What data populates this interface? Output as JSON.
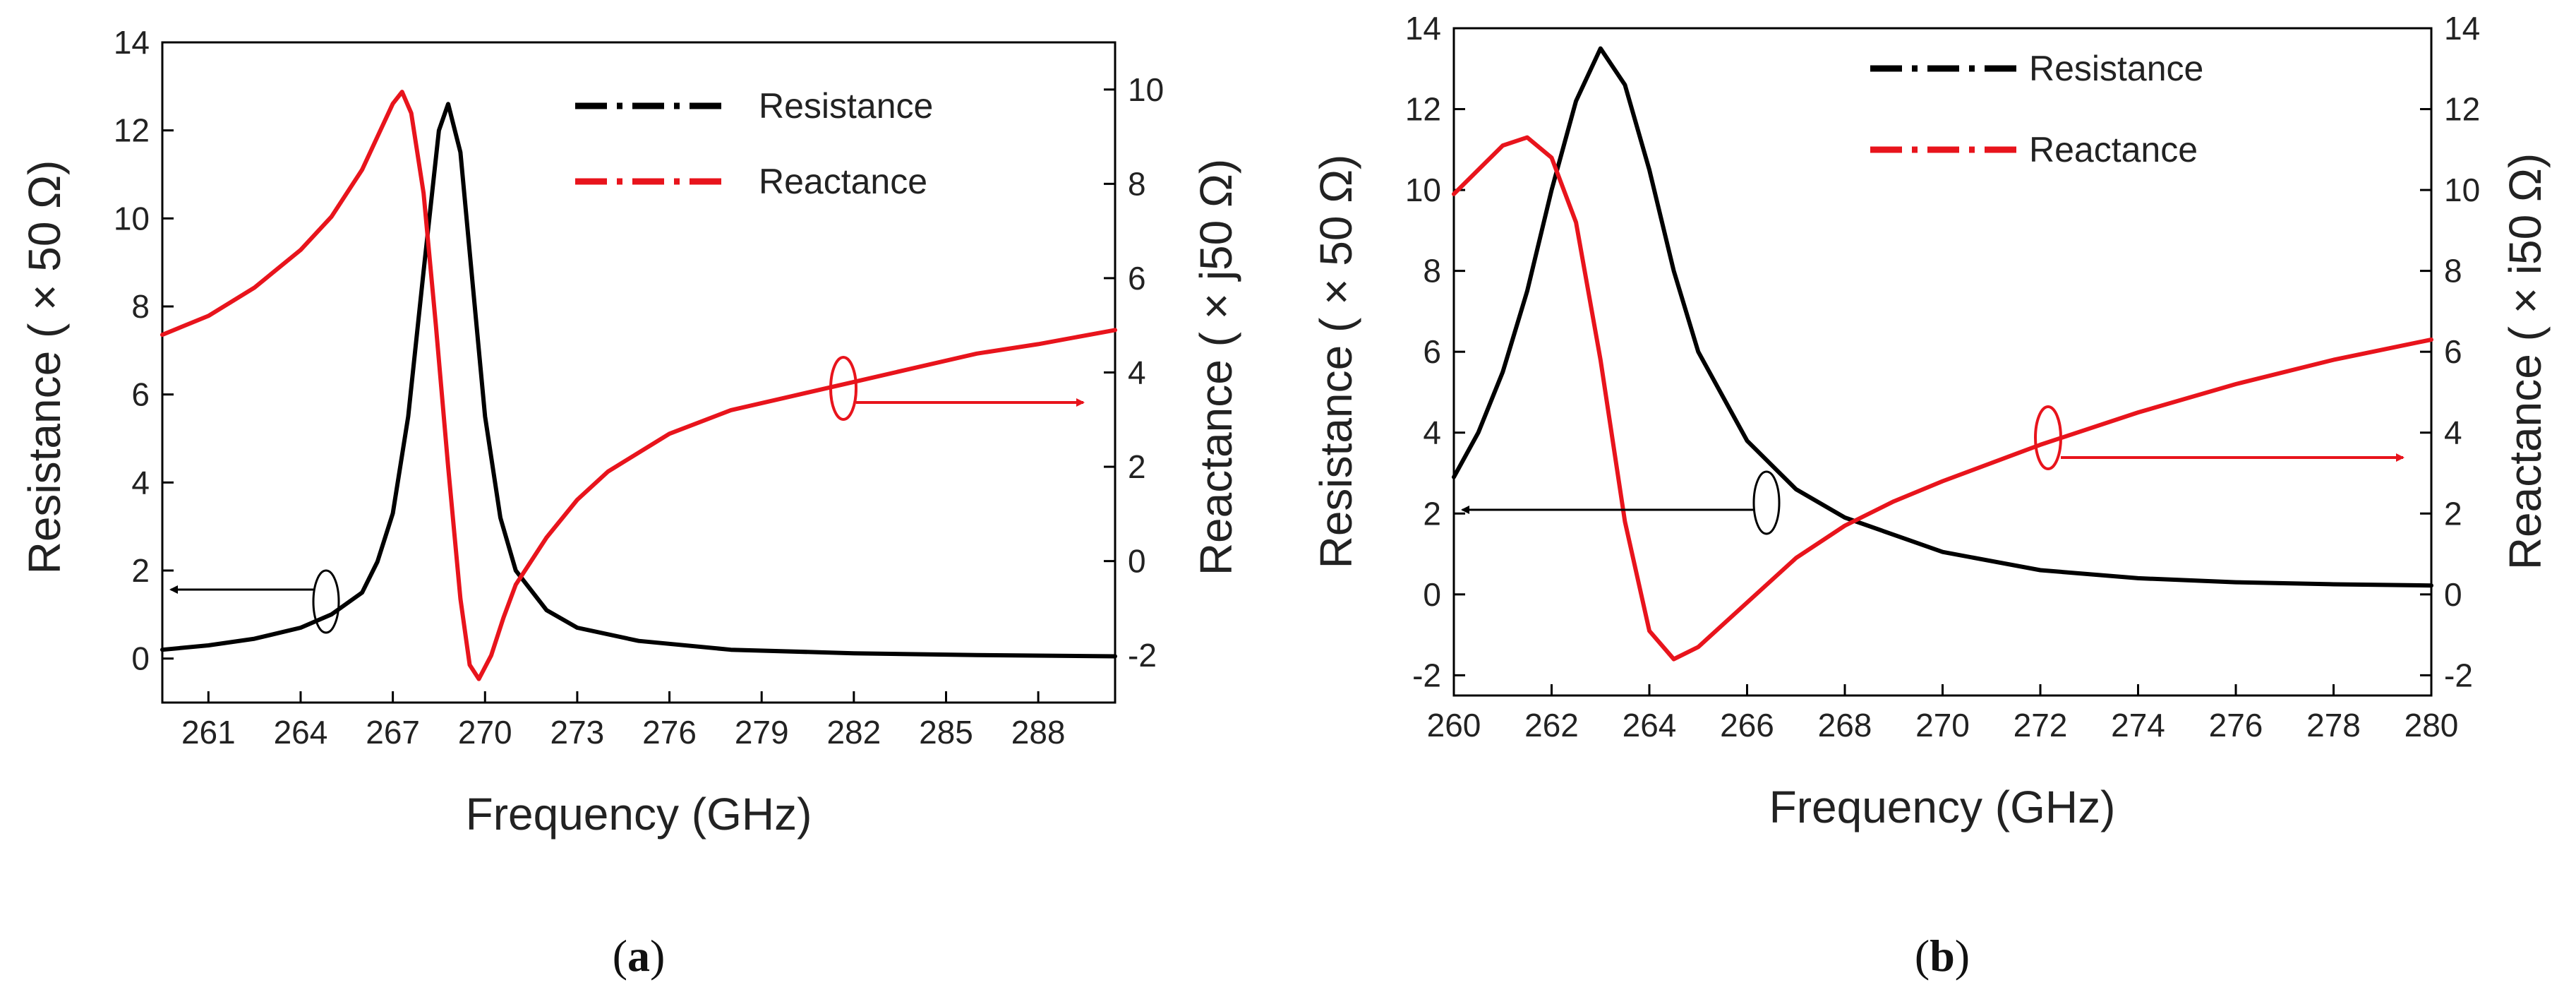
{
  "captions": [
    "a",
    "b"
  ],
  "colors": {
    "resistance": "#000000",
    "reactance": "#e8141c"
  },
  "chart_data": [
    {
      "type": "line",
      "panel": "a",
      "xlabel": "Frequency (GHz)",
      "ylabel_left": "Resistance ( × 50 Ω)",
      "ylabel_right": "Reactance ( × j50 Ω)",
      "xlim": [
        259.5,
        290.5
      ],
      "ylim_left": [
        -1,
        14
      ],
      "ylim_right": [
        -3,
        11
      ],
      "xticks": [
        261,
        264,
        267,
        270,
        273,
        276,
        279,
        282,
        285,
        288
      ],
      "yticks_left": [
        0,
        2,
        4,
        6,
        8,
        10,
        12,
        14
      ],
      "yticks_right": [
        -2,
        0,
        2,
        4,
        6,
        8,
        10
      ],
      "legend": {
        "position": "top-right",
        "entries": [
          "Resistance",
          "Reactance"
        ]
      },
      "series": [
        {
          "name": "Resistance",
          "axis": "left",
          "color": "#000000",
          "x": [
            259.5,
            261,
            262.5,
            264,
            265,
            266,
            266.5,
            267,
            267.5,
            268,
            268.5,
            268.8,
            269.2,
            269.6,
            270,
            270.5,
            271,
            272,
            273,
            275,
            278,
            282,
            286,
            290.5
          ],
          "y": [
            0.2,
            0.3,
            0.45,
            0.7,
            1.0,
            1.5,
            2.2,
            3.3,
            5.5,
            8.8,
            12.0,
            12.6,
            11.5,
            8.5,
            5.5,
            3.2,
            2.0,
            1.1,
            0.7,
            0.4,
            0.2,
            0.12,
            0.08,
            0.05
          ]
        },
        {
          "name": "Reactance",
          "axis": "right",
          "color": "#e8141c",
          "x": [
            259.5,
            261,
            262.5,
            264,
            265,
            266,
            266.5,
            267,
            267.3,
            267.6,
            268,
            268.4,
            268.8,
            269.2,
            269.5,
            269.8,
            270.2,
            270.6,
            271,
            272,
            273,
            274,
            276,
            278,
            280,
            282,
            284,
            286,
            288,
            290.5
          ],
          "y": [
            4.8,
            5.2,
            5.8,
            6.6,
            7.3,
            8.3,
            9.0,
            9.7,
            9.95,
            9.5,
            7.8,
            5.0,
            2.0,
            -0.8,
            -2.2,
            -2.5,
            -2.0,
            -1.2,
            -0.5,
            0.5,
            1.3,
            1.9,
            2.7,
            3.2,
            3.5,
            3.8,
            4.1,
            4.4,
            4.6,
            4.9
          ]
        }
      ]
    },
    {
      "type": "line",
      "panel": "b",
      "xlabel": "Frequency (GHz)",
      "ylabel_left": "Resistance ( × 50 Ω)",
      "ylabel_right": "Reactance ( × i50 Ω)",
      "xlim": [
        260,
        280
      ],
      "ylim_left": [
        -2.5,
        14
      ],
      "ylim_right": [
        -2.5,
        14
      ],
      "xticks": [
        260,
        262,
        264,
        266,
        268,
        270,
        272,
        274,
        276,
        278,
        280
      ],
      "yticks_left": [
        -2,
        0,
        2,
        4,
        6,
        8,
        10,
        12,
        14
      ],
      "yticks_right": [
        -2,
        0,
        2,
        4,
        6,
        8,
        10,
        12,
        14
      ],
      "legend": {
        "position": "top-center",
        "entries": [
          "Resistance",
          "Reactance"
        ]
      },
      "series": [
        {
          "name": "Resistance",
          "axis": "left",
          "color": "#000000",
          "x": [
            260,
            260.5,
            261,
            261.5,
            262,
            262.5,
            263,
            263.5,
            264,
            264.5,
            265,
            266,
            267,
            268,
            270,
            272,
            274,
            276,
            278,
            280
          ],
          "y": [
            2.9,
            4.0,
            5.5,
            7.5,
            10.0,
            12.2,
            13.5,
            12.6,
            10.5,
            8.0,
            6.0,
            3.8,
            2.6,
            1.9,
            1.05,
            0.6,
            0.4,
            0.3,
            0.25,
            0.22
          ],
          "dash_range": [
            262.2,
            264.3
          ]
        },
        {
          "name": "Reactance",
          "axis": "right",
          "color": "#e8141c",
          "x": [
            260,
            260.5,
            261,
            261.5,
            262,
            262.5,
            263,
            263.5,
            264,
            264.5,
            265,
            266,
            267,
            268,
            269,
            270,
            272,
            274,
            276,
            278,
            280
          ],
          "y": [
            9.9,
            10.5,
            11.1,
            11.3,
            10.8,
            9.2,
            5.8,
            1.8,
            -0.9,
            -1.6,
            -1.3,
            -0.2,
            0.9,
            1.7,
            2.3,
            2.8,
            3.7,
            4.5,
            5.2,
            5.8,
            6.3
          ],
          "dash_range": [
            262.4,
            263.7
          ]
        }
      ]
    }
  ]
}
